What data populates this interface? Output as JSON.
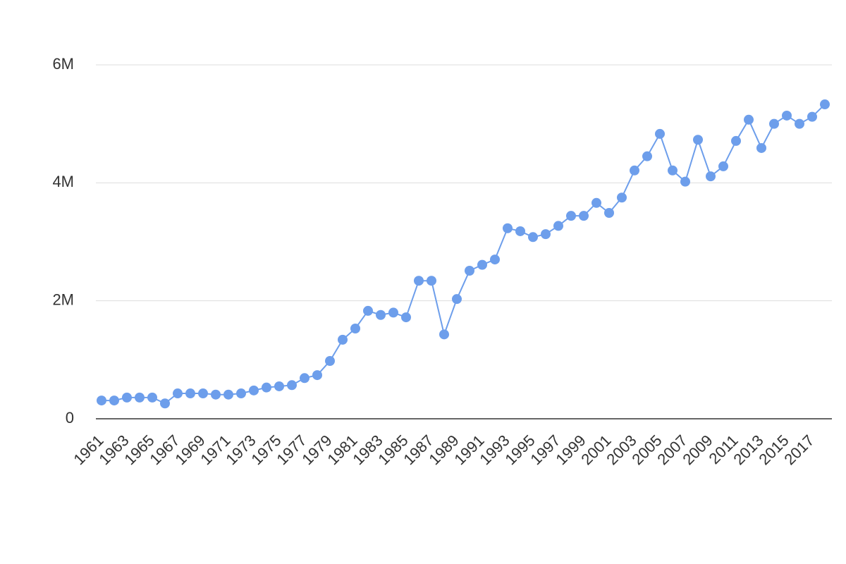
{
  "chart_data": {
    "type": "line",
    "categories": [
      "1961",
      null,
      "1963",
      null,
      "1965",
      null,
      "1967",
      null,
      "1969",
      null,
      "1971",
      null,
      "1973",
      null,
      "1975",
      null,
      "1977",
      null,
      "1979",
      null,
      "1981",
      null,
      "1983",
      null,
      "1985",
      null,
      "1987",
      null,
      "1989",
      null,
      "1991",
      null,
      "1993",
      null,
      "1995",
      null,
      "1997",
      null,
      "1999",
      null,
      "2001",
      null,
      "2003",
      null,
      "2005",
      null,
      "2007",
      null,
      "2009",
      null,
      "2011",
      null,
      "2013",
      null,
      "2015",
      null,
      "2017",
      null
    ],
    "values": [
      310000,
      310000,
      360000,
      360000,
      360000,
      260000,
      430000,
      430000,
      430000,
      410000,
      410000,
      430000,
      480000,
      530000,
      550000,
      570000,
      690000,
      740000,
      980000,
      1340000,
      1530000,
      1830000,
      1760000,
      1800000,
      1720000,
      2340000,
      2340000,
      1430000,
      2030000,
      2510000,
      2610000,
      2700000,
      3230000,
      3180000,
      3080000,
      3130000,
      3270000,
      3440000,
      3440000,
      3660000,
      3490000,
      3750000,
      4210000,
      4450000,
      4830000,
      4210000,
      4020000,
      4730000,
      4110000,
      4280000,
      4710000,
      5070000,
      4590000,
      5000000,
      5140000,
      5000000,
      5120000,
      5330000
    ],
    "color": "#6d9eeb",
    "ylim": [
      0,
      6000000
    ],
    "yticks": [
      0,
      {
        "value": 2000000,
        "label": "2M"
      },
      {
        "value": 4000000,
        "label": "4M"
      },
      {
        "value": 6000000,
        "label": "6M"
      }
    ],
    "grid": true
  }
}
